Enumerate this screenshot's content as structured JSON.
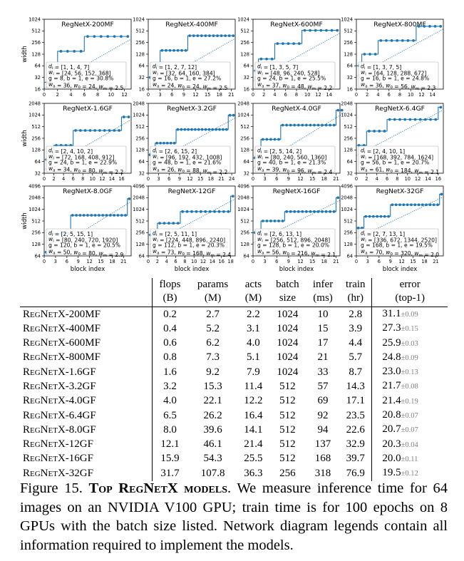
{
  "colors": {
    "line": "#1f77b4",
    "fit": "#1f77b4",
    "axis": "#000000",
    "std": "#808080"
  },
  "figure": {
    "ylabel": "width",
    "xlabel": "block index",
    "panels": [
      {
        "title": "RegNetX-200MF",
        "yticks": [
          "16",
          "32",
          "64",
          "128",
          "256",
          "512",
          "1024"
        ],
        "ylog": [
          16,
          1024
        ],
        "xticks": [
          "0",
          "2",
          "4",
          "6",
          "8",
          "10",
          "12"
        ],
        "xmax": 13,
        "legend": [
          "d_i = [1, 1, 4, 7]",
          "w_i = [24, 56, 152, 368]",
          "g = 8, b = 1, e = 30.8%",
          "w_a = 36, w_0 = 24, w_m = 2.5"
        ],
        "depths": [
          1,
          1,
          4,
          7
        ],
        "widths": [
          24,
          56,
          152,
          368
        ]
      },
      {
        "title": "RegNetX-400MF",
        "yticks": [
          "16",
          "32",
          "64",
          "128",
          "256",
          "512",
          "1024"
        ],
        "ylog": [
          16,
          1024
        ],
        "xticks": [
          "0",
          "3",
          "6",
          "9",
          "12",
          "15",
          "18",
          "21"
        ],
        "xmax": 22,
        "legend": [
          "d_i = [1, 2, 7, 12]",
          "w_i = [32, 64, 160, 384]",
          "g = 16, b = 1, e = 27.2%",
          "w_a = 24, w_0 = 24, w_m = 2.5"
        ],
        "depths": [
          1,
          2,
          7,
          12
        ],
        "widths": [
          32,
          64,
          160,
          384
        ]
      },
      {
        "title": "RegNetX-600MF",
        "yticks": [
          "16",
          "32",
          "64",
          "128",
          "256",
          "512",
          "1024"
        ],
        "ylog": [
          16,
          1024
        ],
        "xticks": [
          "0",
          "2",
          "4",
          "6",
          "8",
          "10",
          "12",
          "14"
        ],
        "xmax": 16,
        "legend": [
          "d_i = [1, 3, 5, 7]",
          "w_i = [48, 96, 240, 528]",
          "g = 24, b = 1, e = 25.5%",
          "w_a = 37, w_0 = 48, w_m = 2.2"
        ],
        "depths": [
          1,
          3,
          5,
          7
        ],
        "widths": [
          48,
          96,
          240,
          528
        ]
      },
      {
        "title": "RegNetX-800MF",
        "yticks": [
          "16",
          "32",
          "64",
          "128",
          "256",
          "512",
          "1024"
        ],
        "ylog": [
          16,
          1024
        ],
        "xticks": [
          "0",
          "2",
          "4",
          "6",
          "8",
          "10",
          "12",
          "14"
        ],
        "xmax": 16,
        "legend": [
          "d_i = [1, 3, 7, 5]",
          "w_i = [64, 128, 288, 672]",
          "g = 16, b = 1, e = 24.8%",
          "w_a = 36, w_0 = 56, w_m = 2.3"
        ],
        "depths": [
          1,
          3,
          7,
          5
        ],
        "widths": [
          64,
          128,
          288,
          672
        ]
      },
      {
        "title": "RegNetX-1.6GF",
        "yticks": [
          "32",
          "64",
          "128",
          "256",
          "512",
          "1024",
          "2048"
        ],
        "ylog": [
          32,
          2048
        ],
        "xticks": [
          "0",
          "2",
          "4",
          "6",
          "8",
          "10",
          "12",
          "14",
          "16"
        ],
        "xmax": 18,
        "legend": [
          "d_i = [2, 4, 10, 2]",
          "w_i = [72, 168, 408, 912]",
          "g = 24, b = 1, e = 22.9%",
          "w_a = 34, w_0 = 80, w_m = 2.2"
        ],
        "depths": [
          2,
          4,
          10,
          2
        ],
        "widths": [
          72,
          168,
          408,
          912
        ]
      },
      {
        "title": "RegNetX-3.2GF",
        "yticks": [
          "32",
          "64",
          "128",
          "256",
          "512",
          "1024",
          "2048"
        ],
        "ylog": [
          32,
          2048
        ],
        "xticks": [
          "0",
          "3",
          "6",
          "9",
          "12",
          "15",
          "18",
          "21",
          "24"
        ],
        "xmax": 25,
        "legend": [
          "d_i = [2, 6, 15, 2]",
          "w_i = [96, 192, 432, 1008]",
          "g = 48, b = 1, e = 21.6%",
          "w_a = 26, w_0 = 88, w_m = 2.2"
        ],
        "depths": [
          2,
          6,
          15,
          2
        ],
        "widths": [
          96,
          192,
          432,
          1008
        ]
      },
      {
        "title": "RegNetX-4.0GF",
        "yticks": [
          "32",
          "64",
          "128",
          "256",
          "512",
          "1024",
          "2048"
        ],
        "ylog": [
          32,
          2048
        ],
        "xticks": [
          "0",
          "3",
          "6",
          "9",
          "12",
          "15",
          "18",
          "21"
        ],
        "xmax": 22,
        "legend": [
          "d_i = [2, 5, 14, 2]",
          "w_i = [80, 240, 560, 1360]",
          "g = 40, b = 1, e = 21.3%",
          "w_a = 39, w_0 = 96, w_m = 2.4"
        ],
        "depths": [
          2,
          5,
          14,
          2
        ],
        "widths": [
          80,
          240,
          560,
          1360
        ]
      },
      {
        "title": "RegNetX-6.4GF",
        "yticks": [
          "32",
          "64",
          "128",
          "256",
          "512",
          "1024",
          "2048"
        ],
        "ylog": [
          32,
          2048
        ],
        "xticks": [
          "0",
          "2",
          "4",
          "6",
          "8",
          "10",
          "12",
          "14",
          "16"
        ],
        "xmax": 17,
        "legend": [
          "d_i = [2, 4, 10, 1]",
          "w_i = [168, 392, 784, 1624]",
          "g = 56, b = 1, e = 20.7%",
          "w_a = 61, w_0 = 184, w_m = 2.1"
        ],
        "depths": [
          2,
          4,
          10,
          1
        ],
        "widths": [
          168,
          392,
          784,
          1624
        ]
      },
      {
        "title": "RegNetX-8.0GF",
        "yticks": [
          "64",
          "128",
          "256",
          "512",
          "1024",
          "2048",
          "4096"
        ],
        "ylog": [
          64,
          4096
        ],
        "xticks": [
          "0",
          "3",
          "6",
          "9",
          "12",
          "15",
          "18",
          "21"
        ],
        "xmax": 23,
        "legend": [
          "d_i = [2, 5, 15, 1]",
          "w_i = [80, 240, 720, 1920]",
          "g = 120, b = 1, e = 20.5%",
          "w_a = 50, w_0 = 80, w_m = 2.9"
        ],
        "depths": [
          2,
          5,
          15,
          1
        ],
        "widths": [
          80,
          240,
          720,
          1920
        ]
      },
      {
        "title": "RegNetX-12GF",
        "yticks": [
          "64",
          "128",
          "256",
          "512",
          "1024",
          "2048",
          "4096"
        ],
        "ylog": [
          64,
          4096
        ],
        "xticks": [
          "0",
          "2",
          "4",
          "6",
          "8",
          "10",
          "12",
          "14",
          "16",
          "18"
        ],
        "xmax": 19,
        "legend": [
          "d_i = [2, 5, 11, 1]",
          "w_i = [224, 448, 896, 2240]",
          "g = 112, b = 1, e = 20.3%",
          "w_a = 73, w_0 = 168, w_m = 2.4"
        ],
        "depths": [
          2,
          5,
          11,
          1
        ],
        "widths": [
          224,
          448,
          896,
          2240
        ]
      },
      {
        "title": "RegNetX-16GF",
        "yticks": [
          "64",
          "128",
          "256",
          "512",
          "1024",
          "2048",
          "4096"
        ],
        "ylog": [
          64,
          4096
        ],
        "xticks": [
          "0",
          "3",
          "6",
          "9",
          "12",
          "15",
          "18",
          "21"
        ],
        "xmax": 22,
        "legend": [
          "d_i = [2, 6, 13, 1]",
          "w_i = [256, 512, 896, 2048]",
          "g = 128, b = 1, e = 20.0%",
          "w_a = 56, w_0 = 216, w_m = 2.1"
        ],
        "depths": [
          2,
          6,
          13,
          1
        ],
        "widths": [
          256,
          512,
          896,
          2048
        ]
      },
      {
        "title": "RegNetX-32GF",
        "yticks": [
          "64",
          "128",
          "256",
          "512",
          "1024",
          "2048",
          "4096"
        ],
        "ylog": [
          64,
          4096
        ],
        "xticks": [
          "0",
          "3",
          "6",
          "9",
          "12",
          "15",
          "18",
          "21"
        ],
        "xmax": 23,
        "legend": [
          "d_i = [2, 7, 13, 1]",
          "w_i = [336, 672, 1344, 2520]",
          "g = 168, b = 1, e = 19.5%",
          "w_a = 70, w_0 = 320, w_m = 2.0"
        ],
        "depths": [
          2,
          7,
          13,
          1
        ],
        "widths": [
          336,
          672,
          1344,
          2520
        ]
      }
    ]
  },
  "table": {
    "headers": [
      [
        "",
        "flops",
        "params",
        "acts",
        "batch",
        "infer",
        "train",
        "error"
      ],
      [
        "",
        "(B)",
        "(M)",
        "(M)",
        "size",
        "(ms)",
        "(hr)",
        "(top-1)"
      ]
    ],
    "rows": [
      [
        "RegNetX-200MF",
        "0.2",
        "2.7",
        "2.2",
        "1024",
        "10",
        "2.8",
        "31.1",
        "±0.09"
      ],
      [
        "RegNetX-400MF",
        "0.4",
        "5.2",
        "3.1",
        "1024",
        "15",
        "3.9",
        "27.3",
        "±0.15"
      ],
      [
        "RegNetX-600MF",
        "0.6",
        "6.2",
        "4.0",
        "1024",
        "17",
        "4.4",
        "25.9",
        "±0.03"
      ],
      [
        "RegNetX-800MF",
        "0.8",
        "7.3",
        "5.1",
        "1024",
        "21",
        "5.7",
        "24.8",
        "±0.09"
      ],
      [
        "RegNetX-1.6GF",
        "1.6",
        "9.2",
        "7.9",
        "1024",
        "33",
        "8.7",
        "23.0",
        "±0.13"
      ],
      [
        "RegNetX-3.2GF",
        "3.2",
        "15.3",
        "11.4",
        "512",
        "57",
        "14.3",
        "21.7",
        "±0.08"
      ],
      [
        "RegNetX-4.0GF",
        "4.0",
        "22.1",
        "12.2",
        "512",
        "69",
        "17.1",
        "21.4",
        "±0.19"
      ],
      [
        "RegNetX-6.4GF",
        "6.5",
        "26.2",
        "16.4",
        "512",
        "92",
        "23.5",
        "20.8",
        "±0.07"
      ],
      [
        "RegNetX-8.0GF",
        "8.0",
        "39.6",
        "14.1",
        "512",
        "94",
        "22.6",
        "20.7",
        "±0.07"
      ],
      [
        "RegNetX-12GF",
        "12.1",
        "46.1",
        "21.4",
        "512",
        "137",
        "32.9",
        "20.3",
        "±0.04"
      ],
      [
        "RegNetX-16GF",
        "15.9",
        "54.3",
        "25.5",
        "512",
        "168",
        "39.7",
        "20.0",
        "±0.11"
      ],
      [
        "RegNetX-32GF",
        "31.7",
        "107.8",
        "36.3",
        "256",
        "318",
        "76.9",
        "19.5",
        "±0.12"
      ]
    ]
  },
  "caption": {
    "label": "Figure 15.",
    "bold": "Top RegNetX models",
    "text": ". We measure inference time for 64 images on an NVIDIA V100 GPU; train time is for 100 epochs on 8 GPUs with the batch size listed. Network diagram legends contain all information required to implement the models."
  }
}
